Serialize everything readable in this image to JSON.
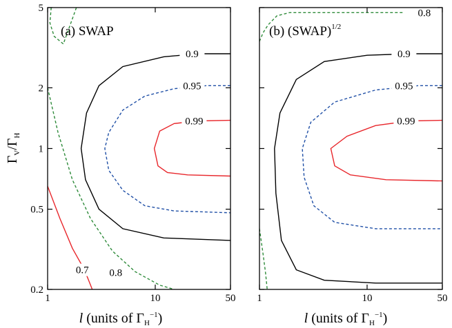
{
  "chart_data": [
    {
      "type": "contour",
      "panel_label": "(a) SWAP",
      "panel_label_main": "(a) SWAP",
      "panel_label_sup": "",
      "xlabel_main": "l",
      "xlabel_rest": " (units of Γ",
      "xlabel_sub": "H",
      "xlabel_sup": "−1",
      "xlabel_close": ")",
      "ylabel_main_1": "Γ",
      "ylabel_sub_1": "V",
      "ylabel_main_2": "/Γ",
      "ylabel_sub_2": "H",
      "x_scale": "log",
      "y_scale": "log",
      "xlim": [
        1,
        50
      ],
      "ylim": [
        0.2,
        5
      ],
      "x_ticks": [
        {
          "value": 1,
          "label": "1"
        },
        {
          "value": 10,
          "label": "10"
        },
        {
          "value": 50,
          "label": "50"
        }
      ],
      "y_ticks": [
        {
          "value": 0.2,
          "label": "0.2"
        },
        {
          "value": 0.5,
          "label": "0.5"
        },
        {
          "value": 1,
          "label": "1"
        },
        {
          "value": 2,
          "label": "2"
        },
        {
          "value": 5,
          "label": "5"
        }
      ],
      "contours": [
        {
          "level": "0.99",
          "color": "#e8262b",
          "dash": false,
          "points": [
            [
              50,
              1.38
            ],
            [
              25,
              1.37
            ],
            [
              15,
              1.33
            ],
            [
              11,
              1.22
            ],
            [
              9.8,
              1.0
            ],
            [
              10.6,
              0.82
            ],
            [
              13,
              0.76
            ],
            [
              20,
              0.74
            ],
            [
              50,
              0.73
            ]
          ],
          "label": "0.99",
          "label_at": [
            23,
            1.37
          ]
        },
        {
          "level": "0.95",
          "color": "#1f4fa6",
          "dash": true,
          "points": [
            [
              50,
              2.05
            ],
            [
              30,
              2.05
            ],
            [
              15,
              1.98
            ],
            [
              8,
              1.82
            ],
            [
              5,
              1.55
            ],
            [
              3.7,
              1.2
            ],
            [
              3.4,
              1.0
            ],
            [
              3.7,
              0.78
            ],
            [
              5,
              0.62
            ],
            [
              8,
              0.52
            ],
            [
              15,
              0.49
            ],
            [
              50,
              0.48
            ]
          ],
          "label": "0.95",
          "label_at": [
            22,
            2.05
          ]
        },
        {
          "level": "0.9",
          "color": "#000000",
          "dash": false,
          "points": [
            [
              50,
              2.95
            ],
            [
              25,
              2.95
            ],
            [
              12,
              2.85
            ],
            [
              5,
              2.55
            ],
            [
              3,
              2.05
            ],
            [
              2.3,
              1.5
            ],
            [
              2.05,
              1.0
            ],
            [
              2.25,
              0.7
            ],
            [
              3,
              0.5
            ],
            [
              5,
              0.4
            ],
            [
              12,
              0.36
            ],
            [
              50,
              0.35
            ]
          ],
          "label": "0.9",
          "label_at": [
            22,
            2.95
          ]
        },
        {
          "level": "0.8",
          "color": "#2e8b3a",
          "dash": true,
          "points": [
            [
              1,
              2.0
            ],
            [
              1.25,
              1.2
            ],
            [
              1.7,
              0.7
            ],
            [
              2.5,
              0.45
            ],
            [
              4,
              0.31
            ],
            [
              6.5,
              0.245
            ],
            [
              11,
              0.21
            ],
            [
              15,
              0.2
            ]
          ],
          "label": "0.8",
          "label_at": [
            4.3,
            0.243
          ]
        },
        {
          "level": "0.8",
          "color": "#2e8b3a",
          "dash": true,
          "points": [
            [
              1.08,
              5.0
            ],
            [
              1.05,
              4.2
            ],
            [
              1.15,
              3.6
            ],
            [
              1.4,
              3.3
            ],
            [
              1.85,
              5.0
            ]
          ],
          "label": "",
          "label_at": null
        },
        {
          "level": "0.7",
          "color": "#e8262b",
          "dash": false,
          "points": [
            [
              1,
              0.65
            ],
            [
              1.3,
              0.45
            ],
            [
              1.7,
              0.32
            ],
            [
              2.2,
              0.25
            ],
            [
              2.6,
              0.2
            ]
          ],
          "label": "0.7",
          "label_at": [
            2.1,
            0.25
          ]
        }
      ]
    },
    {
      "type": "contour",
      "panel_label": "(b) (SWAP)1/2",
      "panel_label_main": "(b) (SWAP)",
      "panel_label_sup": "1/2",
      "xlabel_main": "l",
      "xlabel_rest": " (units of Γ",
      "xlabel_sub": "H",
      "xlabel_sup": "−1",
      "xlabel_close": ")",
      "x_scale": "log",
      "y_scale": "log",
      "xlim": [
        1,
        50
      ],
      "ylim": [
        0.2,
        5
      ],
      "x_ticks": [
        {
          "value": 1,
          "label": "1"
        },
        {
          "value": 10,
          "label": "10"
        },
        {
          "value": 50,
          "label": "50"
        }
      ],
      "y_ticks": [
        {
          "value": 0.2,
          "label": ""
        },
        {
          "value": 0.5,
          "label": ""
        },
        {
          "value": 1,
          "label": ""
        },
        {
          "value": 2,
          "label": ""
        },
        {
          "value": 5,
          "label": ""
        }
      ],
      "contours": [
        {
          "level": "0.99",
          "color": "#e8262b",
          "dash": false,
          "points": [
            [
              50,
              1.38
            ],
            [
              25,
              1.37
            ],
            [
              12,
              1.3
            ],
            [
              6.5,
              1.15
            ],
            [
              4.6,
              1.0
            ],
            [
              5,
              0.82
            ],
            [
              7,
              0.74
            ],
            [
              15,
              0.7
            ],
            [
              50,
              0.69
            ]
          ],
          "label": "0.99",
          "label_at": [
            23,
            1.37
          ]
        },
        {
          "level": "0.95",
          "color": "#1f4fa6",
          "dash": true,
          "points": [
            [
              50,
              2.05
            ],
            [
              30,
              2.05
            ],
            [
              12,
              1.95
            ],
            [
              5,
              1.7
            ],
            [
              3,
              1.35
            ],
            [
              2.5,
              1.0
            ],
            [
              2.6,
              0.72
            ],
            [
              3.2,
              0.52
            ],
            [
              5,
              0.43
            ],
            [
              12,
              0.4
            ],
            [
              50,
              0.4
            ]
          ],
          "label": "0.95",
          "label_at": [
            22,
            2.05
          ]
        },
        {
          "level": "0.9",
          "color": "#000000",
          "dash": false,
          "points": [
            [
              50,
              2.95
            ],
            [
              25,
              2.95
            ],
            [
              10,
              2.9
            ],
            [
              4,
              2.7
            ],
            [
              2.2,
              2.2
            ],
            [
              1.55,
              1.5
            ],
            [
              1.38,
              1.0
            ],
            [
              1.42,
              0.6
            ],
            [
              1.6,
              0.35
            ],
            [
              2.2,
              0.25
            ],
            [
              4,
              0.222
            ],
            [
              12,
              0.215
            ],
            [
              50,
              0.215
            ]
          ],
          "label": "0.9",
          "label_at": [
            22,
            2.95
          ]
        },
        {
          "level": "0.8",
          "color": "#2e8b3a",
          "dash": true,
          "points": [
            [
              1,
              3.4
            ],
            [
              1.08,
              3.75
            ],
            [
              1.2,
              4.1
            ],
            [
              1.45,
              4.55
            ],
            [
              1.9,
              4.72
            ],
            [
              5,
              4.72
            ],
            [
              18,
              4.72
            ],
            [
              22,
              4.72
            ]
          ],
          "label": "0.8",
          "label_at": [
            34,
            4.72
          ]
        },
        {
          "level": "0.8",
          "color": "#2e8b3a",
          "dash": true,
          "points": [
            [
              1,
              0.4
            ],
            [
              1.08,
              0.3
            ],
            [
              1.14,
              0.24
            ],
            [
              1.18,
              0.2
            ]
          ],
          "label": "",
          "label_at": null
        }
      ]
    }
  ]
}
